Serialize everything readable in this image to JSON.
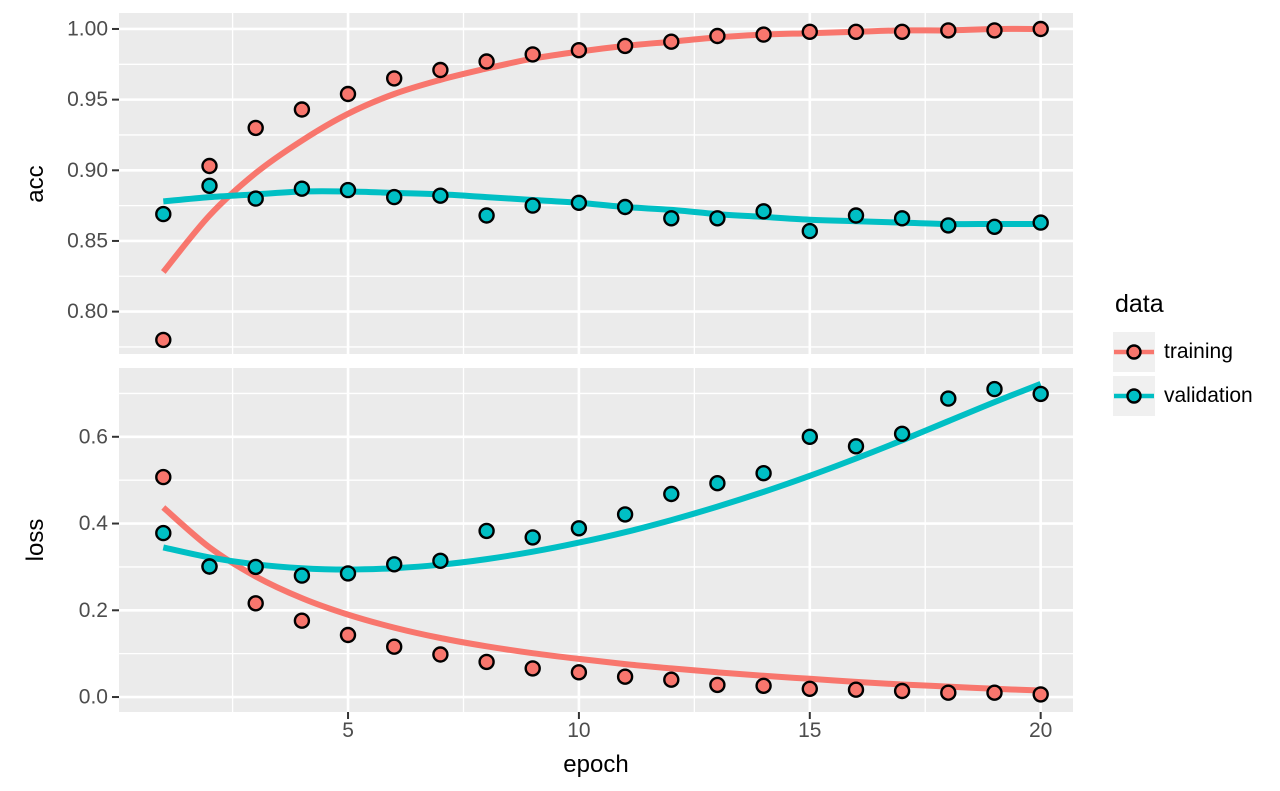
{
  "figure_title": "",
  "x_axis": {
    "label": "epoch",
    "xlim": [
      0.04,
      20.7
    ],
    "major_ticks": [
      {
        "v": 5,
        "label": "5"
      },
      {
        "v": 10,
        "label": "10"
      },
      {
        "v": 15,
        "label": "15"
      },
      {
        "v": 20,
        "label": "20"
      }
    ],
    "minor_ticks": [
      2.5,
      7.5,
      12.5,
      17.5
    ]
  },
  "legend": {
    "title": "data",
    "entries": [
      {
        "label": "training",
        "color": "#F8766D"
      },
      {
        "label": "validation",
        "color": "#00BFC4"
      }
    ]
  },
  "style": {
    "panel_bg": "#EBEBEB",
    "grid_color": "#FFFFFF",
    "tick_color": "#333333",
    "tick_label_color": "#4D4D4D",
    "point_stroke": "#000000",
    "training_color": "#F8766D",
    "validation_color": "#00BFC4"
  },
  "chart_data": [
    {
      "type": "scatter",
      "facet": "acc",
      "ylabel": "acc",
      "xlabel": "epoch",
      "grid": true,
      "legend_position": "right",
      "ylim": [
        0.77,
        1.0113
      ],
      "major_ticks": [
        {
          "v": 1.0,
          "label": "1.00"
        },
        {
          "v": 0.95,
          "label": "0.95"
        },
        {
          "v": 0.9,
          "label": "0.90"
        },
        {
          "v": 0.85,
          "label": "0.85"
        },
        {
          "v": 0.8,
          "label": "0.80"
        }
      ],
      "minor_ticks": [
        0.975,
        0.925,
        0.875,
        0.825,
        0.775
      ],
      "x": [
        1,
        2,
        3,
        4,
        5,
        6,
        7,
        8,
        9,
        10,
        11,
        12,
        13,
        14,
        15,
        16,
        17,
        18,
        19,
        20
      ],
      "series": [
        {
          "name": "training",
          "color": "#F8766D",
          "points": [
            0.78,
            0.903,
            0.93,
            0.943,
            0.954,
            0.965,
            0.971,
            0.977,
            0.982,
            0.985,
            0.988,
            0.991,
            0.995,
            0.996,
            0.998,
            0.998,
            0.998,
            0.999,
            0.999,
            1.0
          ],
          "smooth": [
            0.828,
            0.868,
            0.898,
            0.921,
            0.94,
            0.954,
            0.964,
            0.972,
            0.979,
            0.984,
            0.988,
            0.991,
            0.994,
            0.996,
            0.997,
            0.998,
            0.999,
            0.999,
            1.0,
            1.0
          ]
        },
        {
          "name": "validation",
          "color": "#00BFC4",
          "points": [
            0.869,
            0.889,
            0.88,
            0.887,
            0.886,
            0.881,
            0.882,
            0.868,
            0.875,
            0.877,
            0.874,
            0.866,
            0.866,
            0.871,
            0.857,
            0.868,
            0.866,
            0.861,
            0.86,
            0.863
          ],
          "smooth": [
            0.878,
            0.881,
            0.883,
            0.885,
            0.885,
            0.884,
            0.883,
            0.881,
            0.879,
            0.877,
            0.874,
            0.872,
            0.869,
            0.867,
            0.865,
            0.864,
            0.863,
            0.862,
            0.862,
            0.862
          ]
        }
      ]
    },
    {
      "type": "scatter",
      "facet": "loss",
      "ylabel": "loss",
      "xlabel": "epoch",
      "grid": true,
      "legend_position": "right",
      "ylim": [
        -0.0345,
        0.7586
      ],
      "major_ticks": [
        {
          "v": 0.6,
          "label": "0.6"
        },
        {
          "v": 0.4,
          "label": "0.4"
        },
        {
          "v": 0.2,
          "label": "0.2"
        },
        {
          "v": 0.0,
          "label": "0.0"
        }
      ],
      "minor_ticks": [
        0.7,
        0.5,
        0.3,
        0.1
      ],
      "x": [
        1,
        2,
        3,
        4,
        5,
        6,
        7,
        8,
        9,
        10,
        11,
        12,
        13,
        14,
        15,
        16,
        17,
        18,
        19,
        20
      ],
      "series": [
        {
          "name": "training",
          "color": "#F8766D",
          "points": [
            0.507,
            0.301,
            0.216,
            0.176,
            0.143,
            0.116,
            0.098,
            0.081,
            0.066,
            0.057,
            0.047,
            0.04,
            0.028,
            0.026,
            0.019,
            0.017,
            0.014,
            0.01,
            0.01,
            0.006
          ],
          "smooth": [
            0.437,
            0.345,
            0.278,
            0.228,
            0.19,
            0.16,
            0.136,
            0.117,
            0.101,
            0.088,
            0.076,
            0.066,
            0.057,
            0.049,
            0.042,
            0.035,
            0.029,
            0.024,
            0.019,
            0.015
          ]
        },
        {
          "name": "validation",
          "color": "#00BFC4",
          "points": [
            0.378,
            0.301,
            0.3,
            0.28,
            0.285,
            0.306,
            0.314,
            0.383,
            0.368,
            0.389,
            0.421,
            0.468,
            0.493,
            0.516,
            0.6,
            0.578,
            0.607,
            0.688,
            0.71,
            0.699
          ],
          "smooth": [
            0.345,
            0.322,
            0.306,
            0.297,
            0.294,
            0.297,
            0.305,
            0.318,
            0.335,
            0.356,
            0.38,
            0.408,
            0.439,
            0.473,
            0.51,
            0.55,
            0.592,
            0.636,
            0.68,
            0.722
          ]
        }
      ]
    }
  ]
}
